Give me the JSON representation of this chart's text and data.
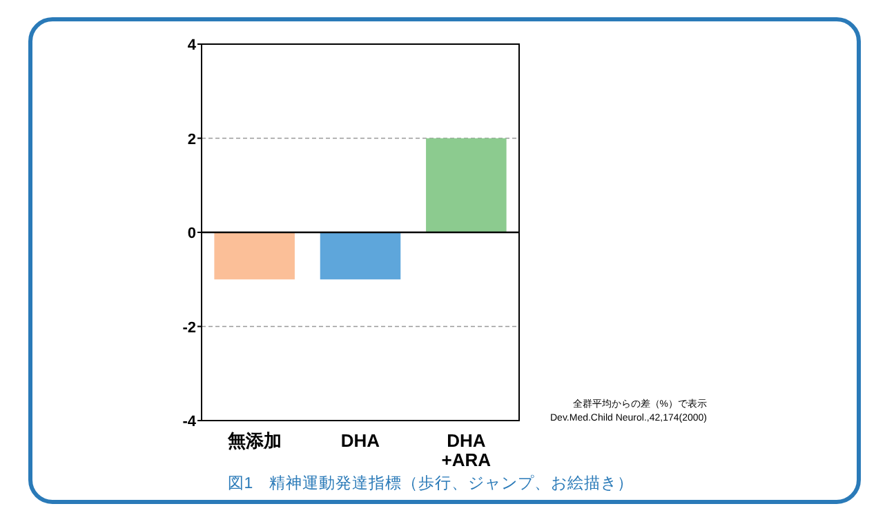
{
  "chart_data": {
    "type": "bar",
    "title": "図1　精神運動発達指標（歩行、ジャンプ、お絵描き）",
    "categories": [
      "無添加",
      "DHA",
      "DHA\n+ARA"
    ],
    "values": [
      -1,
      -1,
      2
    ],
    "colors": [
      "#fbbf98",
      "#5ea6db",
      "#8ccb8f"
    ],
    "ylim": [
      -4,
      4
    ],
    "yticks": [
      -4,
      -2,
      0,
      2,
      4
    ],
    "grid": "y",
    "ref_lines": [
      {
        "axis": "y",
        "value": 0,
        "color": "#000000",
        "line_style": "solid"
      }
    ],
    "annotations": [
      "全群平均からの差（%）で表示",
      "Dev.Med.Child Neurol.,42,174(2000)"
    ]
  }
}
